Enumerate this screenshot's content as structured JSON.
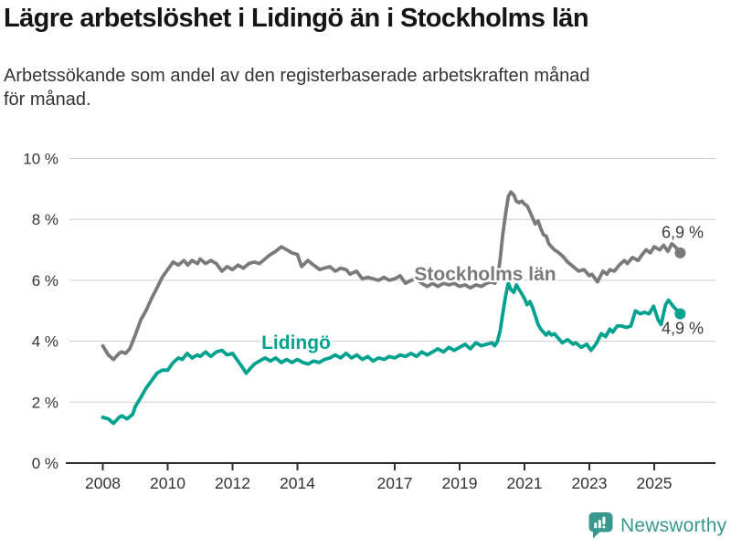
{
  "header": {
    "title": "Lägre arbetslöshet i Lidingö än i Stockholms län",
    "subtitle": "Arbetssökande som andel av den registerbaserade arbetskraften månad\nför månad."
  },
  "footer": {
    "brand": "Newsworthy"
  },
  "colors": {
    "stockholm_gray": "#7a7a7a",
    "lidingo_teal": "#00a18f",
    "grid": "#cdcdcd",
    "axis": "#2e2e2e",
    "text": "#333333",
    "logo_teal": "#38988e"
  },
  "chart_data": {
    "type": "line",
    "title": "Lägre arbetslöshet i Lidingö än i Stockholms län",
    "subtitle": "Arbetssökande som andel av den registerbaserade arbetskraften månad för månad.",
    "unit": "percent",
    "frequency": "monthly",
    "grid": true,
    "legend": "inline-labels",
    "ylim": [
      0,
      10
    ],
    "y_ticks": [
      0,
      2,
      4,
      6,
      8,
      10
    ],
    "y_tick_labels": [
      "0 %",
      "2 %",
      "4 %",
      "6 %",
      "8 %",
      "10 %"
    ],
    "x_ticks": [
      2008,
      2010,
      2012,
      2014,
      2017,
      2019,
      2021,
      2023,
      2025
    ],
    "x_range": [
      2008.0,
      2025.8
    ],
    "series": [
      {
        "name": "Stockholms län",
        "color": "#7a7a7a",
        "end_label": "6,9 %",
        "end_value": 6.9,
        "points": [
          [
            2008.0,
            3.85
          ],
          [
            2008.17,
            3.55
          ],
          [
            2008.33,
            3.4
          ],
          [
            2008.5,
            3.6
          ],
          [
            2008.58,
            3.65
          ],
          [
            2008.7,
            3.6
          ],
          [
            2008.83,
            3.75
          ],
          [
            2009.0,
            4.2
          ],
          [
            2009.17,
            4.7
          ],
          [
            2009.33,
            5.0
          ],
          [
            2009.5,
            5.4
          ],
          [
            2009.67,
            5.75
          ],
          [
            2009.83,
            6.1
          ],
          [
            2010.0,
            6.35
          ],
          [
            2010.17,
            6.6
          ],
          [
            2010.33,
            6.5
          ],
          [
            2010.5,
            6.65
          ],
          [
            2010.62,
            6.5
          ],
          [
            2010.75,
            6.65
          ],
          [
            2010.92,
            6.55
          ],
          [
            2011.0,
            6.7
          ],
          [
            2011.17,
            6.55
          ],
          [
            2011.33,
            6.65
          ],
          [
            2011.5,
            6.55
          ],
          [
            2011.67,
            6.3
          ],
          [
            2011.83,
            6.45
          ],
          [
            2012.0,
            6.35
          ],
          [
            2012.17,
            6.5
          ],
          [
            2012.33,
            6.4
          ],
          [
            2012.5,
            6.55
          ],
          [
            2012.67,
            6.6
          ],
          [
            2012.83,
            6.55
          ],
          [
            2013.0,
            6.7
          ],
          [
            2013.17,
            6.85
          ],
          [
            2013.33,
            6.95
          ],
          [
            2013.5,
            7.1
          ],
          [
            2013.67,
            7.0
          ],
          [
            2013.83,
            6.9
          ],
          [
            2014.0,
            6.85
          ],
          [
            2014.13,
            6.45
          ],
          [
            2014.32,
            6.65
          ],
          [
            2014.5,
            6.5
          ],
          [
            2014.69,
            6.35
          ],
          [
            2014.83,
            6.4
          ],
          [
            2015.0,
            6.45
          ],
          [
            2015.17,
            6.3
          ],
          [
            2015.33,
            6.4
          ],
          [
            2015.5,
            6.35
          ],
          [
            2015.62,
            6.2
          ],
          [
            2015.82,
            6.3
          ],
          [
            2016.0,
            6.05
          ],
          [
            2016.17,
            6.1
          ],
          [
            2016.33,
            6.05
          ],
          [
            2016.5,
            6.0
          ],
          [
            2016.67,
            6.1
          ],
          [
            2016.83,
            6.0
          ],
          [
            2017.0,
            6.05
          ],
          [
            2017.17,
            6.15
          ],
          [
            2017.33,
            5.9
          ],
          [
            2017.5,
            6.0
          ],
          [
            2017.67,
            6.05
          ],
          [
            2017.83,
            5.9
          ],
          [
            2018.0,
            5.8
          ],
          [
            2018.17,
            5.9
          ],
          [
            2018.33,
            5.8
          ],
          [
            2018.5,
            5.9
          ],
          [
            2018.67,
            5.85
          ],
          [
            2018.83,
            5.9
          ],
          [
            2019.0,
            5.8
          ],
          [
            2019.17,
            5.85
          ],
          [
            2019.33,
            5.75
          ],
          [
            2019.5,
            5.85
          ],
          [
            2019.67,
            5.8
          ],
          [
            2019.83,
            5.9
          ],
          [
            2020.0,
            5.95
          ],
          [
            2020.08,
            5.9
          ],
          [
            2020.17,
            6.05
          ],
          [
            2020.25,
            6.7
          ],
          [
            2020.33,
            7.5
          ],
          [
            2020.42,
            8.2
          ],
          [
            2020.5,
            8.75
          ],
          [
            2020.58,
            8.9
          ],
          [
            2020.67,
            8.8
          ],
          [
            2020.75,
            8.6
          ],
          [
            2020.83,
            8.55
          ],
          [
            2020.92,
            8.6
          ],
          [
            2021.0,
            8.5
          ],
          [
            2021.08,
            8.45
          ],
          [
            2021.17,
            8.25
          ],
          [
            2021.25,
            8.05
          ],
          [
            2021.33,
            7.85
          ],
          [
            2021.42,
            7.95
          ],
          [
            2021.5,
            7.7
          ],
          [
            2021.58,
            7.5
          ],
          [
            2021.67,
            7.45
          ],
          [
            2021.75,
            7.2
          ],
          [
            2021.83,
            7.1
          ],
          [
            2021.92,
            7.0
          ],
          [
            2022.0,
            6.95
          ],
          [
            2022.17,
            6.8
          ],
          [
            2022.33,
            6.6
          ],
          [
            2022.5,
            6.45
          ],
          [
            2022.67,
            6.3
          ],
          [
            2022.83,
            6.35
          ],
          [
            2023.0,
            6.15
          ],
          [
            2023.08,
            6.2
          ],
          [
            2023.25,
            5.95
          ],
          [
            2023.42,
            6.3
          ],
          [
            2023.54,
            6.2
          ],
          [
            2023.63,
            6.35
          ],
          [
            2023.77,
            6.3
          ],
          [
            2023.92,
            6.5
          ],
          [
            2024.08,
            6.65
          ],
          [
            2024.17,
            6.55
          ],
          [
            2024.33,
            6.75
          ],
          [
            2024.5,
            6.65
          ],
          [
            2024.63,
            6.85
          ],
          [
            2024.75,
            7.0
          ],
          [
            2024.88,
            6.9
          ],
          [
            2025.0,
            7.1
          ],
          [
            2025.17,
            7.0
          ],
          [
            2025.29,
            7.15
          ],
          [
            2025.42,
            6.95
          ],
          [
            2025.54,
            7.2
          ],
          [
            2025.65,
            7.1
          ],
          [
            2025.8,
            6.9
          ]
        ]
      },
      {
        "name": "Lidingö",
        "color": "#00a18f",
        "end_label": "4,9 %",
        "end_value": 4.9,
        "points": [
          [
            2008.0,
            1.5
          ],
          [
            2008.17,
            1.45
          ],
          [
            2008.33,
            1.3
          ],
          [
            2008.5,
            1.5
          ],
          [
            2008.58,
            1.55
          ],
          [
            2008.75,
            1.45
          ],
          [
            2008.92,
            1.6
          ],
          [
            2009.0,
            1.85
          ],
          [
            2009.17,
            2.15
          ],
          [
            2009.33,
            2.45
          ],
          [
            2009.5,
            2.7
          ],
          [
            2009.67,
            2.95
          ],
          [
            2009.83,
            3.05
          ],
          [
            2010.0,
            3.05
          ],
          [
            2010.17,
            3.3
          ],
          [
            2010.33,
            3.45
          ],
          [
            2010.45,
            3.4
          ],
          [
            2010.6,
            3.6
          ],
          [
            2010.75,
            3.45
          ],
          [
            2010.92,
            3.55
          ],
          [
            2011.0,
            3.5
          ],
          [
            2011.17,
            3.65
          ],
          [
            2011.33,
            3.5
          ],
          [
            2011.5,
            3.65
          ],
          [
            2011.67,
            3.7
          ],
          [
            2011.83,
            3.55
          ],
          [
            2012.0,
            3.6
          ],
          [
            2012.17,
            3.35
          ],
          [
            2012.33,
            3.1
          ],
          [
            2012.42,
            2.95
          ],
          [
            2012.5,
            3.05
          ],
          [
            2012.67,
            3.25
          ],
          [
            2012.83,
            3.35
          ],
          [
            2013.0,
            3.45
          ],
          [
            2013.17,
            3.35
          ],
          [
            2013.33,
            3.45
          ],
          [
            2013.5,
            3.3
          ],
          [
            2013.67,
            3.4
          ],
          [
            2013.83,
            3.3
          ],
          [
            2014.0,
            3.4
          ],
          [
            2014.17,
            3.3
          ],
          [
            2014.33,
            3.25
          ],
          [
            2014.5,
            3.35
          ],
          [
            2014.67,
            3.3
          ],
          [
            2014.83,
            3.4
          ],
          [
            2015.0,
            3.45
          ],
          [
            2015.17,
            3.55
          ],
          [
            2015.33,
            3.45
          ],
          [
            2015.5,
            3.6
          ],
          [
            2015.67,
            3.45
          ],
          [
            2015.83,
            3.55
          ],
          [
            2016.0,
            3.4
          ],
          [
            2016.17,
            3.5
          ],
          [
            2016.33,
            3.35
          ],
          [
            2016.5,
            3.45
          ],
          [
            2016.67,
            3.4
          ],
          [
            2016.83,
            3.5
          ],
          [
            2017.0,
            3.45
          ],
          [
            2017.17,
            3.55
          ],
          [
            2017.33,
            3.5
          ],
          [
            2017.5,
            3.6
          ],
          [
            2017.67,
            3.5
          ],
          [
            2017.83,
            3.65
          ],
          [
            2018.0,
            3.55
          ],
          [
            2018.17,
            3.65
          ],
          [
            2018.33,
            3.75
          ],
          [
            2018.5,
            3.65
          ],
          [
            2018.67,
            3.8
          ],
          [
            2018.83,
            3.7
          ],
          [
            2019.0,
            3.8
          ],
          [
            2019.17,
            3.9
          ],
          [
            2019.33,
            3.75
          ],
          [
            2019.5,
            3.95
          ],
          [
            2019.67,
            3.85
          ],
          [
            2019.83,
            3.9
          ],
          [
            2020.0,
            3.95
          ],
          [
            2020.08,
            3.85
          ],
          [
            2020.17,
            4.0
          ],
          [
            2020.25,
            4.35
          ],
          [
            2020.33,
            4.9
          ],
          [
            2020.42,
            5.5
          ],
          [
            2020.5,
            5.9
          ],
          [
            2020.58,
            5.7
          ],
          [
            2020.67,
            5.6
          ],
          [
            2020.75,
            5.85
          ],
          [
            2020.83,
            5.7
          ],
          [
            2020.92,
            5.55
          ],
          [
            2021.0,
            5.4
          ],
          [
            2021.08,
            5.2
          ],
          [
            2021.17,
            5.3
          ],
          [
            2021.25,
            5.1
          ],
          [
            2021.33,
            4.85
          ],
          [
            2021.42,
            4.55
          ],
          [
            2021.5,
            4.4
          ],
          [
            2021.58,
            4.3
          ],
          [
            2021.67,
            4.2
          ],
          [
            2021.75,
            4.3
          ],
          [
            2021.83,
            4.2
          ],
          [
            2021.92,
            4.25
          ],
          [
            2022.0,
            4.15
          ],
          [
            2022.17,
            3.95
          ],
          [
            2022.33,
            4.05
          ],
          [
            2022.5,
            3.9
          ],
          [
            2022.58,
            3.95
          ],
          [
            2022.75,
            3.8
          ],
          [
            2022.92,
            3.9
          ],
          [
            2023.05,
            3.7
          ],
          [
            2023.2,
            3.9
          ],
          [
            2023.37,
            4.25
          ],
          [
            2023.5,
            4.15
          ],
          [
            2023.63,
            4.4
          ],
          [
            2023.72,
            4.3
          ],
          [
            2023.86,
            4.5
          ],
          [
            2024.0,
            4.5
          ],
          [
            2024.14,
            4.45
          ],
          [
            2024.28,
            4.5
          ],
          [
            2024.42,
            5.0
          ],
          [
            2024.56,
            4.9
          ],
          [
            2024.7,
            4.95
          ],
          [
            2024.84,
            4.9
          ],
          [
            2024.98,
            5.15
          ],
          [
            2025.12,
            4.7
          ],
          [
            2025.21,
            4.55
          ],
          [
            2025.35,
            5.2
          ],
          [
            2025.44,
            5.35
          ],
          [
            2025.58,
            5.15
          ],
          [
            2025.8,
            4.9
          ]
        ]
      }
    ]
  }
}
